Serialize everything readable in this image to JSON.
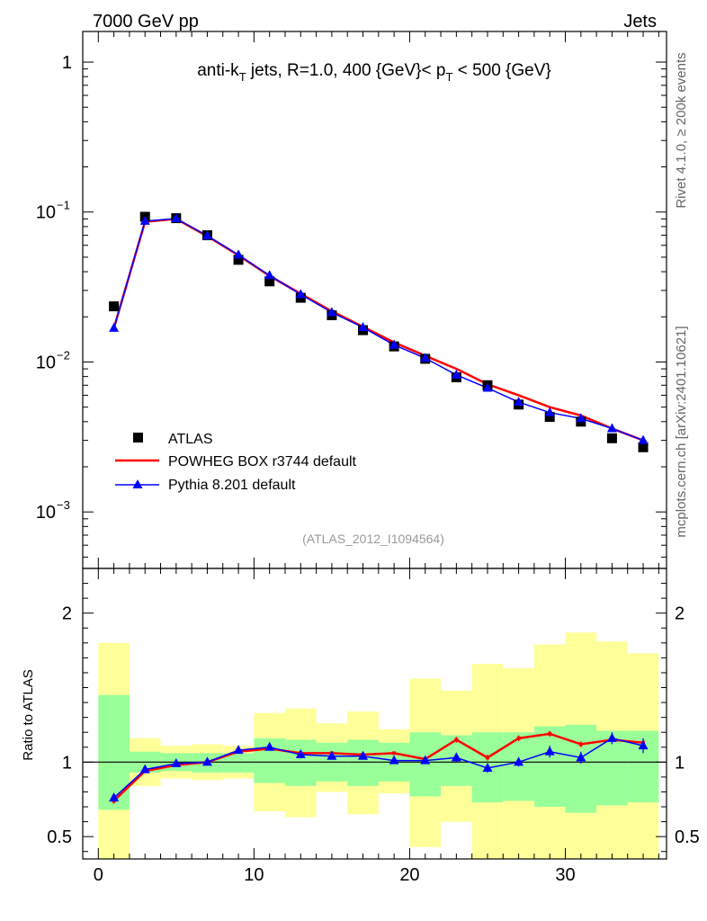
{
  "header": {
    "left": "7000 GeV pp",
    "right": "Jets"
  },
  "side_labels": {
    "rivet": "Rivet 4.1.0, ≥ 200k events",
    "mcplots": "mcplots.cern.ch [arXiv:2401.10621]"
  },
  "chart_data": {
    "type": "scatter",
    "title_parts": {
      "prefix": "anti-k",
      "prefix_sub": "T",
      "middle": " jets, R=1.0, 400 {GeV}< p",
      "middle_sub": "T",
      "suffix": " < 500 {GeV}"
    },
    "analysis_id": "(ATLAS_2012_I1094564)",
    "x": [
      1,
      3,
      5,
      7,
      9,
      11,
      13,
      15,
      17,
      19,
      21,
      23,
      25,
      27,
      29,
      31,
      33,
      35
    ],
    "x_edges": [
      0,
      2,
      4,
      6,
      8,
      10,
      12,
      14,
      16,
      18,
      20,
      22,
      24,
      26,
      28,
      30,
      32,
      34,
      36
    ],
    "xlim": [
      -1,
      36.5
    ],
    "x_ticks": [
      0,
      10,
      20,
      30
    ],
    "x_tick_labels": [
      "0",
      "10",
      "20",
      "30"
    ],
    "main": {
      "yscale": "log",
      "ylim": [
        0.00042,
        1.6
      ],
      "y_ticks": [
        0.001,
        0.01,
        0.1,
        1
      ],
      "y_tick_labels": [
        {
          "base": "10",
          "exp": "−3"
        },
        {
          "base": "10",
          "exp": "−2"
        },
        {
          "base": "10",
          "exp": "−1"
        },
        {
          "base": "1",
          "exp": ""
        }
      ],
      "series": [
        {
          "name": "ATLAS",
          "style": "square",
          "color": "#000000",
          "values": [
            0.0235,
            0.093,
            0.091,
            0.07,
            0.048,
            0.0345,
            0.0268,
            0.0205,
            0.0163,
            0.0127,
            0.0105,
            0.0079,
            0.007,
            0.0052,
            0.0043,
            0.004,
            0.0031,
            0.0027
          ]
        },
        {
          "name": "POWHEG BOX r3744 default",
          "style": "line",
          "color": "#ff0000",
          "values": [
            0.0168,
            0.086,
            0.09,
            0.069,
            0.0515,
            0.0375,
            0.0285,
            0.0218,
            0.0172,
            0.0135,
            0.011,
            0.009,
            0.0071,
            0.006,
            0.005,
            0.0044,
            0.0036,
            0.003
          ]
        },
        {
          "name": "Pythia 8.201 default",
          "style": "triangle",
          "color": "#0000ff",
          "values": [
            0.0168,
            0.087,
            0.0905,
            0.0695,
            0.0518,
            0.0378,
            0.0282,
            0.0214,
            0.017,
            0.013,
            0.0106,
            0.0082,
            0.0067,
            0.0054,
            0.0046,
            0.0042,
            0.0036,
            0.003
          ]
        }
      ]
    },
    "ratio": {
      "ylabel": "Ratio to ATLAS",
      "ylim": [
        0.35,
        2.3
      ],
      "y_ticks": [
        0.5,
        1,
        2
      ],
      "y_tick_labels": [
        "0.5",
        "1",
        "2"
      ],
      "reference": 1,
      "band_inner": [
        [
          0.68,
          1.45
        ],
        [
          0.93,
          1.07
        ],
        [
          0.94,
          1.06
        ],
        [
          0.93,
          1.06
        ],
        [
          0.93,
          1.06
        ],
        [
          0.86,
          1.16
        ],
        [
          0.84,
          1.15
        ],
        [
          0.87,
          1.13
        ],
        [
          0.84,
          1.15
        ],
        [
          0.87,
          1.13
        ],
        [
          0.77,
          1.2
        ],
        [
          0.84,
          1.18
        ],
        [
          0.73,
          1.2
        ],
        [
          0.74,
          1.2
        ],
        [
          0.7,
          1.24
        ],
        [
          0.66,
          1.25
        ],
        [
          0.71,
          1.21
        ],
        [
          0.73,
          1.21
        ]
      ],
      "band_outer": [
        [
          0.0,
          1.8
        ],
        [
          0.84,
          1.16
        ],
        [
          0.89,
          1.11
        ],
        [
          0.88,
          1.12
        ],
        [
          0.89,
          1.11
        ],
        [
          0.67,
          1.33
        ],
        [
          0.63,
          1.36
        ],
        [
          0.8,
          1.26
        ],
        [
          0.65,
          1.34
        ],
        [
          0.79,
          1.22
        ],
        [
          0.43,
          1.56
        ],
        [
          0.6,
          1.48
        ],
        [
          0.0,
          1.66
        ],
        [
          0.0,
          1.63
        ],
        [
          0.0,
          1.79
        ],
        [
          0.0,
          1.87
        ],
        [
          0.0,
          1.81
        ],
        [
          0.0,
          1.73
        ]
      ],
      "series": [
        {
          "name": "POWHEG BOX r3744 default",
          "color": "#ff0000",
          "values": [
            0.74,
            0.94,
            0.98,
            1.0,
            1.07,
            1.09,
            1.06,
            1.06,
            1.05,
            1.06,
            1.02,
            1.15,
            1.03,
            1.16,
            1.19,
            1.12,
            1.15,
            1.13
          ],
          "errors": [
            0.02,
            0.01,
            0.01,
            0.01,
            0.01,
            0.01,
            0.01,
            0.01,
            0.01,
            0.01,
            0.01,
            0.02,
            0.02,
            0.02,
            0.02,
            0.02,
            0.02,
            0.02
          ]
        },
        {
          "name": "Pythia 8.201 default",
          "color": "#0000ff",
          "values": [
            0.76,
            0.95,
            0.99,
            1.0,
            1.08,
            1.1,
            1.05,
            1.04,
            1.04,
            1.01,
            1.01,
            1.03,
            0.96,
            1.0,
            1.07,
            1.03,
            1.16,
            1.11
          ],
          "errors": [
            0.02,
            0.01,
            0.01,
            0.01,
            0.02,
            0.02,
            0.02,
            0.02,
            0.02,
            0.02,
            0.02,
            0.03,
            0.03,
            0.03,
            0.04,
            0.04,
            0.04,
            0.05
          ]
        }
      ]
    },
    "colors": {
      "inner_band": "#99ff99",
      "outer_band": "#ffff99"
    }
  }
}
